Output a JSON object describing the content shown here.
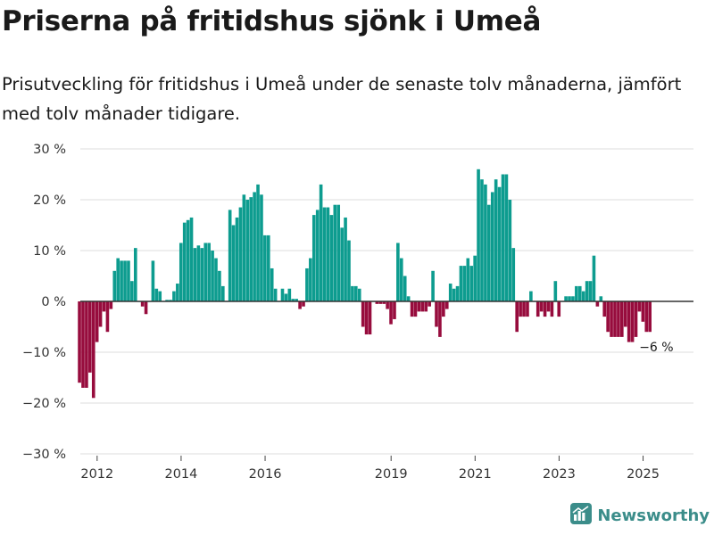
{
  "title": "Priserna på fritidshus sjönk i Umeå",
  "subtitle": "Prisutveckling för fritidshus i Umeå under de senaste tolv månaderna, jämfört med tolv månader tidigare.",
  "brand": {
    "name": "Newsworthy",
    "icon": "newsworthy-logo-icon"
  },
  "colors": {
    "positive": "#0d9c8f",
    "negative": "#970c3d",
    "grid": "#dddddd",
    "zero_line": "#333333"
  },
  "chart_data": {
    "type": "bar",
    "series_name": "Prisutveckling (%)",
    "x_start": 2011.58,
    "x_step": 0.08333,
    "values": [
      -16,
      -17,
      -17,
      -14,
      -19,
      -8,
      -5,
      -2,
      -6,
      -1.5,
      6,
      8.5,
      8,
      8,
      8,
      4,
      10.5,
      0,
      -1,
      -2.5,
      0,
      8,
      2.5,
      2,
      0,
      0.3,
      0.3,
      2,
      3.5,
      11.5,
      15.5,
      16,
      16.5,
      10.5,
      11,
      10.5,
      11.5,
      11.5,
      10,
      8.5,
      6,
      3,
      0,
      18,
      15,
      16.5,
      18.5,
      21,
      20,
      20.5,
      21.5,
      23,
      21,
      13,
      13,
      6.5,
      2.5,
      0,
      2.5,
      1.5,
      2.5,
      0.5,
      0.5,
      -1.5,
      -1,
      6.5,
      8.5,
      17,
      18,
      23,
      18.5,
      18.5,
      17,
      19,
      19,
      14.5,
      16.5,
      12,
      3,
      3,
      2.5,
      -5,
      -6.5,
      -6.5,
      0,
      -0.5,
      -0.5,
      -0.5,
      -1.5,
      -4.5,
      -3.5,
      11.5,
      8.5,
      5,
      1,
      -3,
      -3,
      -2,
      -2,
      -2,
      -1,
      6,
      -5,
      -7,
      -3,
      -1.5,
      3.5,
      2.5,
      3,
      7,
      7,
      8.5,
      7,
      9,
      26,
      24,
      23,
      19,
      21.5,
      24,
      22.5,
      25,
      25,
      20,
      10.5,
      -6,
      -3,
      -3,
      -3,
      2,
      0,
      -3,
      -2,
      -3,
      -2,
      -3,
      4,
      -3,
      0,
      1,
      1,
      1,
      3,
      3,
      2,
      4,
      4,
      9,
      -1,
      1,
      -3,
      -6,
      -7,
      -7,
      -7,
      -7,
      -5,
      -8,
      -8,
      -7,
      -2,
      -4,
      -6,
      -6
    ],
    "ylim": [
      -30,
      30
    ],
    "y_ticks": [
      -30,
      -20,
      -10,
      0,
      10,
      20,
      30
    ],
    "y_tick_labels": [
      "−30 %",
      "−20 %",
      "−10 %",
      "0 %",
      "10 %",
      "20 %",
      "30 %"
    ],
    "x_ticks": [
      2012,
      2014,
      2016,
      2019,
      2021,
      2023,
      2025
    ],
    "x_tick_labels": [
      "2012",
      "2014",
      "2016",
      "2019",
      "2021",
      "2023",
      "2025"
    ],
    "x_range": [
      2011.6,
      2026.2
    ],
    "end_label": "−6 %",
    "title": "Priserna på fritidshus sjönk i Umeå",
    "xlabel": "",
    "ylabel": "",
    "grid": true
  }
}
